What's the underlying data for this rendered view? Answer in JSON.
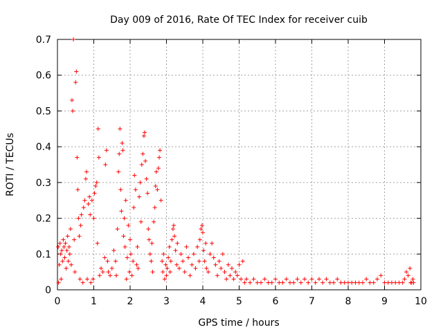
{
  "chart_data": {
    "type": "scatter",
    "title": "Day 009 of 2016, Rate Of TEC Index for receiver cuib",
    "xlabel": "GPS time / hours",
    "ylabel": "ROTI / TECUs",
    "xlim": [
      0,
      10
    ],
    "ylim": [
      0,
      0.7
    ],
    "xticks": [
      0,
      1,
      2,
      3,
      4,
      5,
      6,
      7,
      8,
      9,
      10
    ],
    "yticks": [
      0,
      0.1,
      0.2,
      0.3,
      0.4,
      0.5,
      0.6,
      0.7
    ],
    "xtick_labels": [
      "0",
      "1",
      "2",
      "3",
      "4",
      "5",
      "6",
      "7",
      "8",
      "9",
      "10"
    ],
    "ytick_labels": [
      "0",
      "0.1",
      "0.2",
      "0.3",
      "0.4",
      "0.5",
      "0.6",
      "0.7"
    ],
    "grid": true,
    "marker": "+",
    "color": "#ff0000",
    "series": [
      {
        "name": "ROTI",
        "points": [
          [
            0.02,
            0.12
          ],
          [
            0.03,
            0.02
          ],
          [
            0.05,
            0.07
          ],
          [
            0.07,
            0.13
          ],
          [
            0.09,
            0.1
          ],
          [
            0.1,
            0.03
          ],
          [
            0.12,
            0.11
          ],
          [
            0.14,
            0.08
          ],
          [
            0.16,
            0.14
          ],
          [
            0.18,
            0.12
          ],
          [
            0.2,
            0.09
          ],
          [
            0.22,
            0.13
          ],
          [
            0.24,
            0.06
          ],
          [
            0.26,
            0.11
          ],
          [
            0.28,
            0.15
          ],
          [
            0.3,
            0.08
          ],
          [
            0.32,
            0.12
          ],
          [
            0.34,
            0.1
          ],
          [
            0.36,
            0.17
          ],
          [
            0.38,
            0.07
          ],
          [
            0.4,
            0.53
          ],
          [
            0.42,
            0.5
          ],
          [
            0.44,
            0.7
          ],
          [
            0.46,
            0.14
          ],
          [
            0.48,
            0.05
          ],
          [
            0.5,
            0.58
          ],
          [
            0.52,
            0.61
          ],
          [
            0.54,
            0.37
          ],
          [
            0.56,
            0.28
          ],
          [
            0.58,
            0.2
          ],
          [
            0.6,
            0.15
          ],
          [
            0.62,
            0.03
          ],
          [
            0.64,
            0.18
          ],
          [
            0.66,
            0.21
          ],
          [
            0.7,
            0.02
          ],
          [
            0.72,
            0.23
          ],
          [
            0.75,
            0.25
          ],
          [
            0.78,
            0.31
          ],
          [
            0.8,
            0.33
          ],
          [
            0.82,
            0.03
          ],
          [
            0.85,
            0.24
          ],
          [
            0.88,
            0.26
          ],
          [
            0.9,
            0.21
          ],
          [
            0.92,
            0.02
          ],
          [
            0.95,
            0.25
          ],
          [
            0.98,
            0.03
          ],
          [
            1.0,
            0.2
          ],
          [
            1.02,
            0.27
          ],
          [
            1.05,
            0.29
          ],
          [
            1.08,
            0.3
          ],
          [
            1.1,
            0.13
          ],
          [
            1.12,
            0.45
          ],
          [
            1.14,
            0.37
          ],
          [
            1.16,
            0.04
          ],
          [
            1.2,
            0.06
          ],
          [
            1.25,
            0.05
          ],
          [
            1.3,
            0.09
          ],
          [
            1.32,
            0.35
          ],
          [
            1.35,
            0.39
          ],
          [
            1.38,
            0.08
          ],
          [
            1.4,
            0.05
          ],
          [
            1.45,
            0.04
          ],
          [
            1.5,
            0.06
          ],
          [
            1.55,
            0.11
          ],
          [
            1.6,
            0.08
          ],
          [
            1.62,
            0.04
          ],
          [
            1.65,
            0.17
          ],
          [
            1.68,
            0.33
          ],
          [
            1.7,
            0.38
          ],
          [
            1.72,
            0.45
          ],
          [
            1.74,
            0.28
          ],
          [
            1.76,
            0.22
          ],
          [
            1.78,
            0.41
          ],
          [
            1.8,
            0.39
          ],
          [
            1.82,
            0.15
          ],
          [
            1.84,
            0.2
          ],
          [
            1.86,
            0.12
          ],
          [
            1.88,
            0.25
          ],
          [
            1.9,
            0.03
          ],
          [
            1.92,
            0.09
          ],
          [
            1.95,
            0.18
          ],
          [
            1.98,
            0.05
          ],
          [
            2.0,
            0.14
          ],
          [
            2.02,
            0.1
          ],
          [
            2.05,
            0.04
          ],
          [
            2.08,
            0.08
          ],
          [
            2.1,
            0.23
          ],
          [
            2.12,
            0.32
          ],
          [
            2.15,
            0.28
          ],
          [
            2.18,
            0.07
          ],
          [
            2.2,
            0.12
          ],
          [
            2.22,
            0.06
          ],
          [
            2.25,
            0.26
          ],
          [
            2.28,
            0.3
          ],
          [
            2.3,
            0.19
          ],
          [
            2.32,
            0.35
          ],
          [
            2.35,
            0.38
          ],
          [
            2.38,
            0.43
          ],
          [
            2.4,
            0.44
          ],
          [
            2.42,
            0.36
          ],
          [
            2.45,
            0.31
          ],
          [
            2.48,
            0.27
          ],
          [
            2.5,
            0.17
          ],
          [
            2.52,
            0.14
          ],
          [
            2.55,
            0.1
          ],
          [
            2.58,
            0.08
          ],
          [
            2.6,
            0.13
          ],
          [
            2.62,
            0.05
          ],
          [
            2.65,
            0.19
          ],
          [
            2.68,
            0.23
          ],
          [
            2.7,
            0.29
          ],
          [
            2.72,
            0.33
          ],
          [
            2.75,
            0.28
          ],
          [
            2.78,
            0.34
          ],
          [
            2.8,
            0.37
          ],
          [
            2.82,
            0.39
          ],
          [
            2.85,
            0.25
          ],
          [
            2.88,
            0.08
          ],
          [
            2.9,
            0.05
          ],
          [
            2.92,
            0.1
          ],
          [
            2.95,
            0.03
          ],
          [
            2.98,
            0.07
          ],
          [
            3.0,
            0.04
          ],
          [
            3.02,
            0.06
          ],
          [
            3.05,
            0.09
          ],
          [
            3.08,
            0.12
          ],
          [
            3.1,
            0.05
          ],
          [
            3.12,
            0.08
          ],
          [
            3.15,
            0.14
          ],
          [
            3.18,
            0.17
          ],
          [
            3.2,
            0.18
          ],
          [
            3.22,
            0.15
          ],
          [
            3.25,
            0.11
          ],
          [
            3.28,
            0.07
          ],
          [
            3.3,
            0.13
          ],
          [
            3.35,
            0.06
          ],
          [
            3.4,
            0.1
          ],
          [
            3.45,
            0.08
          ],
          [
            3.5,
            0.05
          ],
          [
            3.55,
            0.12
          ],
          [
            3.6,
            0.09
          ],
          [
            3.65,
            0.04
          ],
          [
            3.7,
            0.07
          ],
          [
            3.75,
            0.1
          ],
          [
            3.8,
            0.06
          ],
          [
            3.85,
            0.12
          ],
          [
            3.9,
            0.08
          ],
          [
            3.92,
            0.14
          ],
          [
            3.95,
            0.17
          ],
          [
            3.98,
            0.18
          ],
          [
            4.0,
            0.16
          ],
          [
            4.02,
            0.11
          ],
          [
            4.05,
            0.08
          ],
          [
            4.08,
            0.13
          ],
          [
            4.1,
            0.06
          ],
          [
            4.15,
            0.05
          ],
          [
            4.2,
            0.1
          ],
          [
            4.25,
            0.13
          ],
          [
            4.3,
            0.09
          ],
          [
            4.35,
            0.07
          ],
          [
            4.4,
            0.04
          ],
          [
            4.45,
            0.08
          ],
          [
            4.5,
            0.06
          ],
          [
            4.55,
            0.1
          ],
          [
            4.6,
            0.05
          ],
          [
            4.65,
            0.03
          ],
          [
            4.7,
            0.07
          ],
          [
            4.75,
            0.04
          ],
          [
            4.8,
            0.06
          ],
          [
            4.85,
            0.03
          ],
          [
            4.9,
            0.05
          ],
          [
            4.95,
            0.04
          ],
          [
            5.0,
            0.07
          ],
          [
            5.05,
            0.03
          ],
          [
            5.1,
            0.08
          ],
          [
            5.15,
            0.02
          ],
          [
            5.2,
            0.03
          ],
          [
            5.3,
            0.02
          ],
          [
            5.4,
            0.03
          ],
          [
            5.5,
            0.02
          ],
          [
            5.6,
            0.02
          ],
          [
            5.7,
            0.03
          ],
          [
            5.8,
            0.02
          ],
          [
            5.9,
            0.02
          ],
          [
            6.0,
            0.03
          ],
          [
            6.1,
            0.02
          ],
          [
            6.2,
            0.02
          ],
          [
            6.3,
            0.03
          ],
          [
            6.4,
            0.02
          ],
          [
            6.5,
            0.02
          ],
          [
            6.6,
            0.03
          ],
          [
            6.7,
            0.02
          ],
          [
            6.8,
            0.03
          ],
          [
            6.9,
            0.02
          ],
          [
            7.0,
            0.03
          ],
          [
            7.1,
            0.02
          ],
          [
            7.2,
            0.03
          ],
          [
            7.3,
            0.02
          ],
          [
            7.4,
            0.03
          ],
          [
            7.5,
            0.02
          ],
          [
            7.6,
            0.02
          ],
          [
            7.7,
            0.03
          ],
          [
            7.8,
            0.02
          ],
          [
            7.9,
            0.02
          ],
          [
            8.0,
            0.02
          ],
          [
            8.1,
            0.02
          ],
          [
            8.2,
            0.02
          ],
          [
            8.3,
            0.02
          ],
          [
            8.4,
            0.02
          ],
          [
            8.5,
            0.03
          ],
          [
            8.6,
            0.02
          ],
          [
            8.7,
            0.02
          ],
          [
            8.8,
            0.03
          ],
          [
            8.9,
            0.04
          ],
          [
            9.0,
            0.02
          ],
          [
            9.1,
            0.02
          ],
          [
            9.2,
            0.02
          ],
          [
            9.3,
            0.02
          ],
          [
            9.4,
            0.02
          ],
          [
            9.5,
            0.02
          ],
          [
            9.55,
            0.03
          ],
          [
            9.6,
            0.05
          ],
          [
            9.65,
            0.04
          ],
          [
            9.7,
            0.06
          ],
          [
            9.72,
            0.02
          ],
          [
            9.75,
            0.02
          ],
          [
            9.78,
            0.03
          ],
          [
            9.8,
            0.02
          ]
        ]
      }
    ]
  }
}
